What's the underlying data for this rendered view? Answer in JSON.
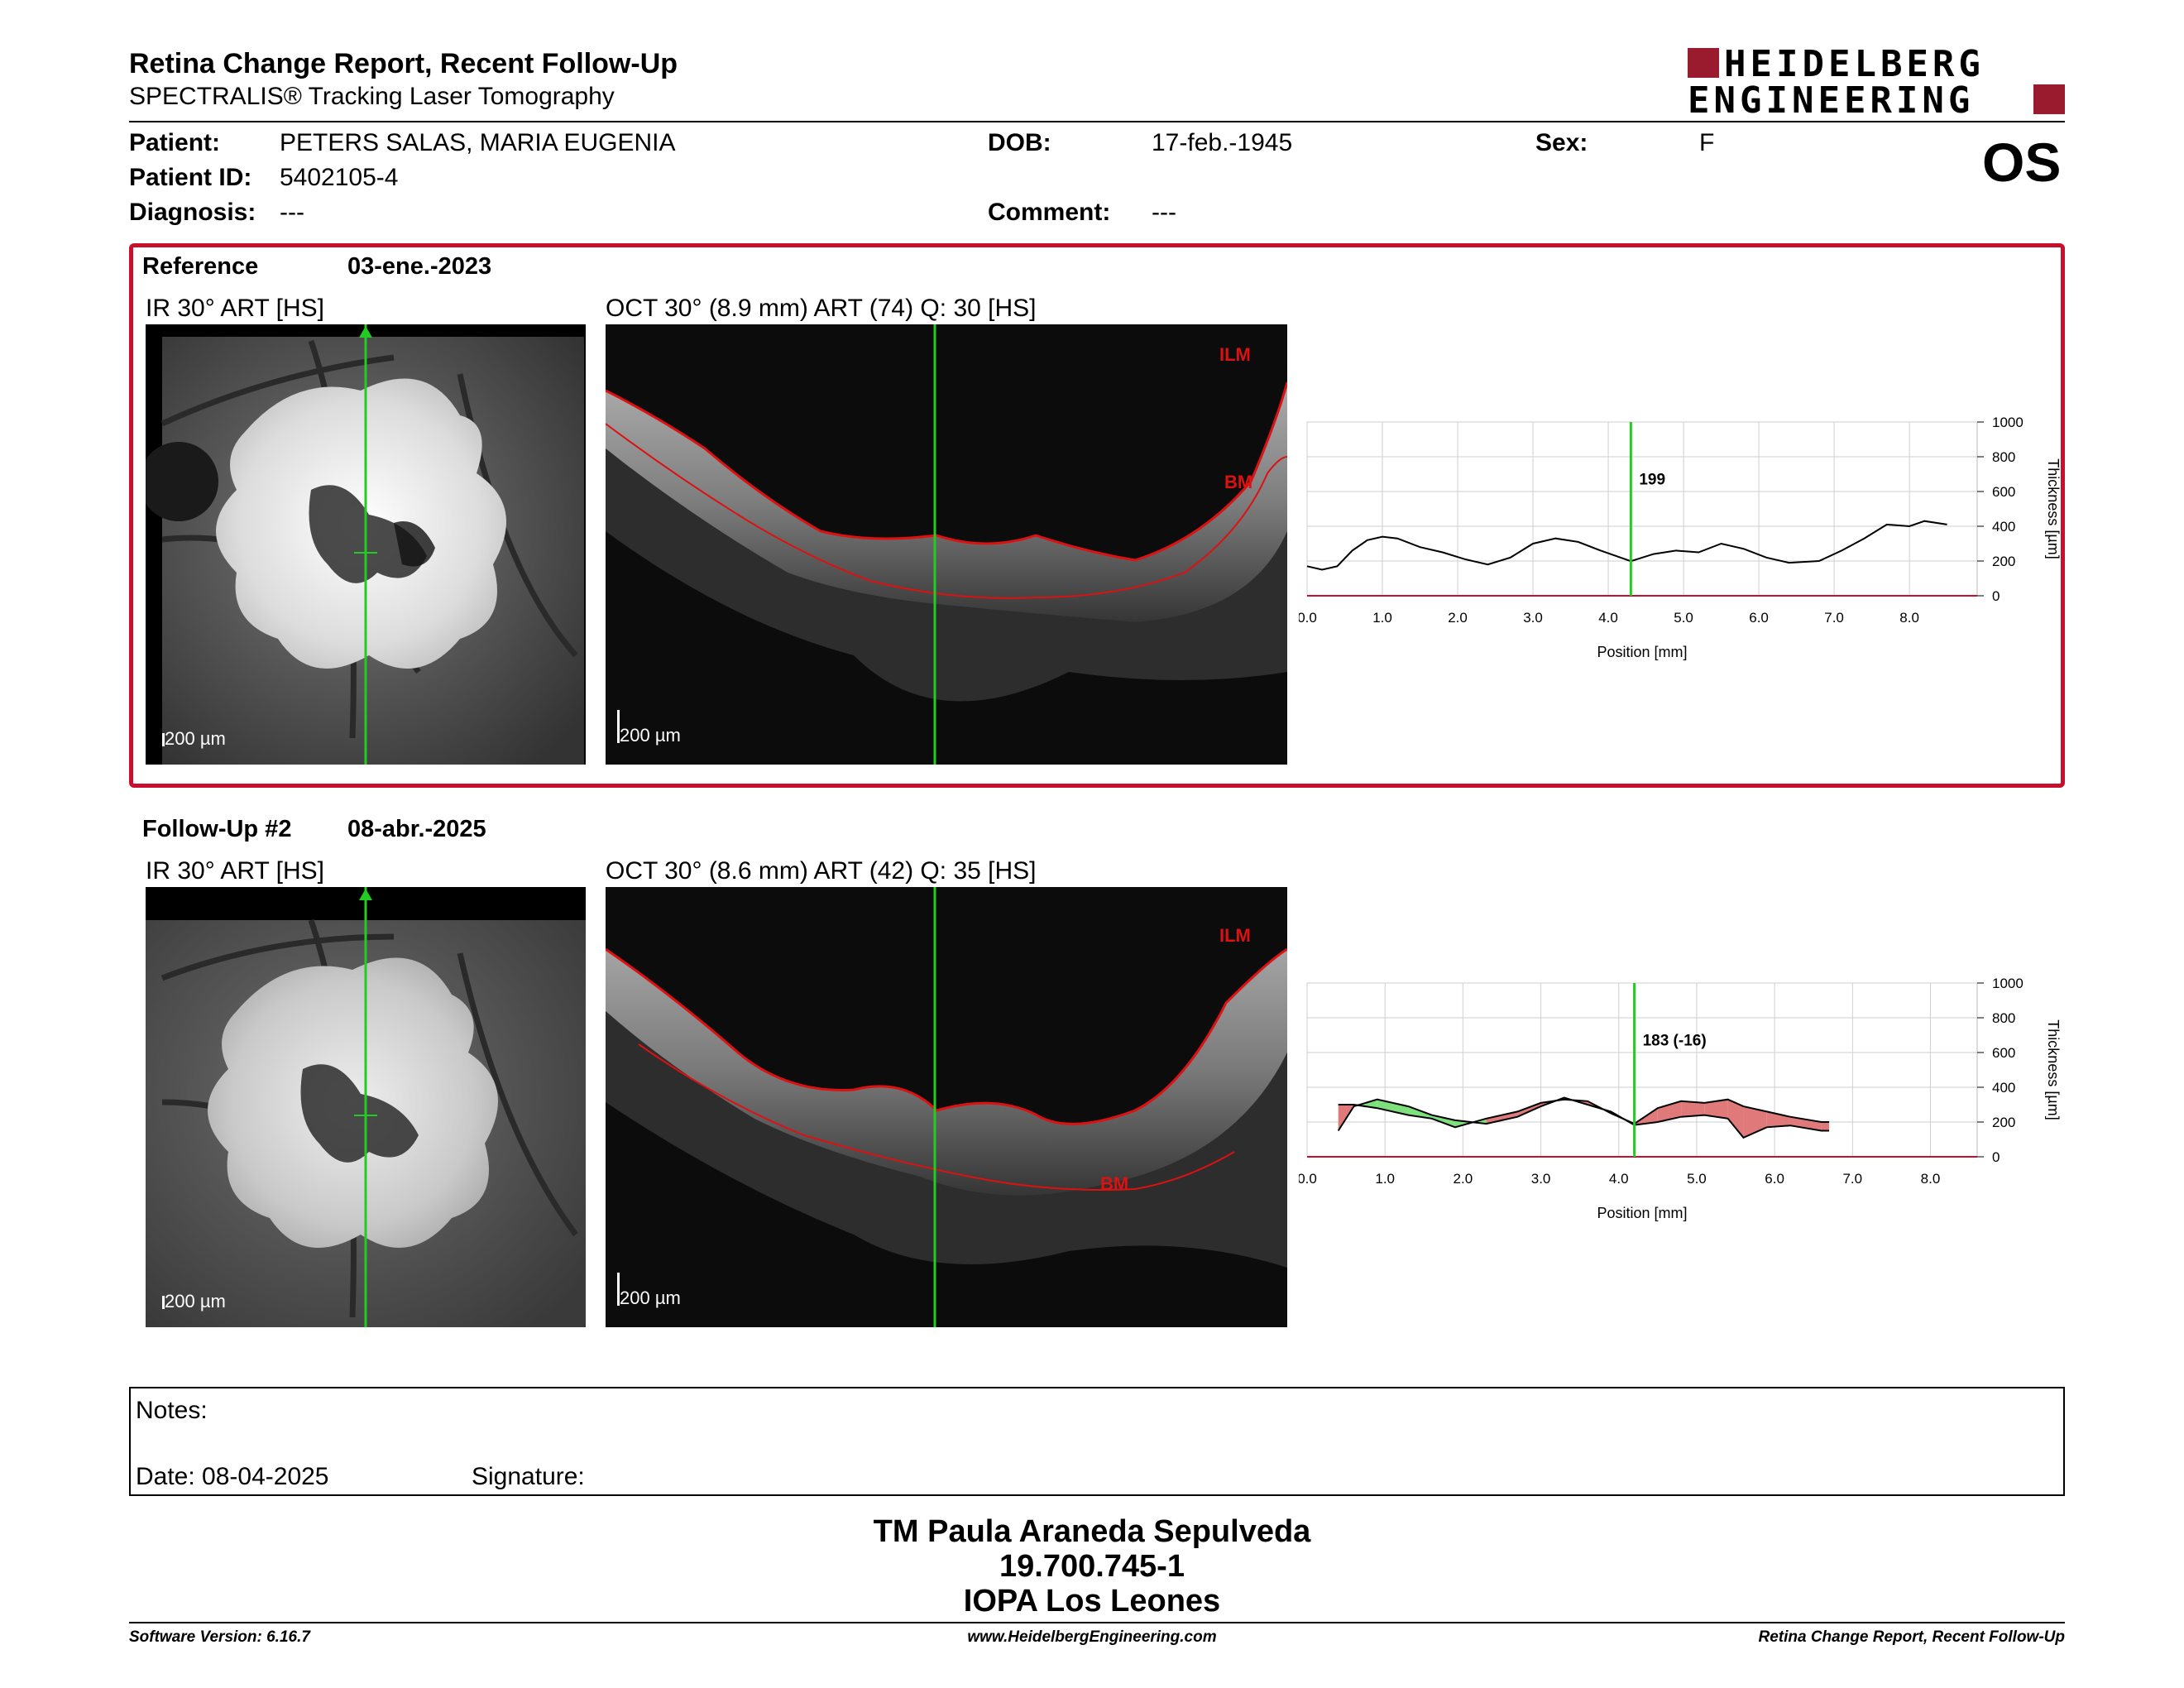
{
  "header": {
    "title": "Retina Change Report, Recent Follow-Up",
    "subtitle": "SPECTRALIS® Tracking Laser Tomography",
    "logo_line1": "HEIDELBERG",
    "logo_line2": "ENGINEERING",
    "eye": "OS"
  },
  "patient": {
    "patient_label": "Patient:",
    "patient_value": "PETERS SALAS, MARIA EUGENIA",
    "id_label": "Patient ID:",
    "id_value": "5402105-4",
    "diag_label": "Diagnosis:",
    "diag_value": "---",
    "dob_label": "DOB:",
    "dob_value": "17-feb.-1945",
    "comment_label": "Comment:",
    "comment_value": "---",
    "sex_label": "Sex:",
    "sex_value": "F"
  },
  "reference": {
    "label": "Reference",
    "date": "03-ene.-2023",
    "ir_label": "IR 30° ART [HS]",
    "oct_label": "OCT 30° (8.9 mm) ART (74) Q: 30 [HS]",
    "scale": "200 µm",
    "ilm": "ILM",
    "bm": "BM",
    "marker_value": "199"
  },
  "followup": {
    "label": "Follow-Up #2",
    "date": "08-abr.-2025",
    "ir_label": "IR 30° ART [HS]",
    "oct_label": "OCT 30° (8.6 mm) ART (42) Q: 35 [HS]",
    "scale": "200 µm",
    "ilm": "ILM",
    "bm": "BM",
    "marker_value": "183 (-16)"
  },
  "chart_data": [
    {
      "type": "line",
      "xlabel": "Position [mm]",
      "ylabel": "Thickness [µm]",
      "xlim": [
        0,
        8.9
      ],
      "ylim": [
        0,
        1000
      ],
      "xticks": [
        "0.0",
        "1.0",
        "2.0",
        "3.0",
        "4.0",
        "5.0",
        "6.0",
        "7.0",
        "8.0"
      ],
      "yticks": [
        "0",
        "200",
        "400",
        "600",
        "800",
        "1000"
      ],
      "marker_x": 4.3,
      "marker_label": "199",
      "series": [
        {
          "values": [
            [
              0,
              170
            ],
            [
              0.2,
              150
            ],
            [
              0.4,
              170
            ],
            [
              0.6,
              260
            ],
            [
              0.8,
              320
            ],
            [
              1.0,
              340
            ],
            [
              1.2,
              330
            ],
            [
              1.5,
              280
            ],
            [
              1.8,
              250
            ],
            [
              2.1,
              210
            ],
            [
              2.4,
              180
            ],
            [
              2.7,
              220
            ],
            [
              3.0,
              300
            ],
            [
              3.3,
              330
            ],
            [
              3.6,
              310
            ],
            [
              3.9,
              260
            ],
            [
              4.3,
              199
            ],
            [
              4.6,
              240
            ],
            [
              4.9,
              260
            ],
            [
              5.2,
              250
            ],
            [
              5.5,
              300
            ],
            [
              5.8,
              270
            ],
            [
              6.1,
              220
            ],
            [
              6.4,
              190
            ],
            [
              6.8,
              200
            ],
            [
              7.1,
              260
            ],
            [
              7.4,
              330
            ],
            [
              7.7,
              410
            ],
            [
              8.0,
              400
            ],
            [
              8.2,
              430
            ],
            [
              8.5,
              410
            ]
          ]
        }
      ]
    },
    {
      "type": "line",
      "xlabel": "Position [mm]",
      "ylabel": "Thickness [µm]",
      "xlim": [
        0,
        8.6
      ],
      "ylim": [
        0,
        1000
      ],
      "xticks": [
        "0.0",
        "1.0",
        "2.0",
        "3.0",
        "4.0",
        "5.0",
        "6.0",
        "7.0",
        "8.0"
      ],
      "yticks": [
        "0",
        "200",
        "400",
        "600",
        "800",
        "1000"
      ],
      "marker_x": 4.2,
      "marker_label": "183 (-16)",
      "series": [
        {
          "values": [
            [
              0.4,
              150
            ],
            [
              0.6,
              290
            ],
            [
              0.9,
              330
            ],
            [
              1.3,
              290
            ],
            [
              1.6,
              240
            ],
            [
              1.9,
              210
            ],
            [
              2.3,
              190
            ],
            [
              2.7,
              230
            ],
            [
              3.0,
              290
            ],
            [
              3.3,
              340
            ],
            [
              3.6,
              300
            ],
            [
              3.9,
              260
            ],
            [
              4.2,
              183
            ],
            [
              4.5,
              200
            ],
            [
              4.8,
              230
            ],
            [
              5.1,
              240
            ],
            [
              5.4,
              220
            ],
            [
              5.6,
              110
            ],
            [
              5.9,
              170
            ],
            [
              6.2,
              180
            ],
            [
              6.6,
              150
            ],
            [
              6.7,
              150
            ]
          ]
        },
        {
          "values": [
            [
              0.4,
              300
            ],
            [
              0.6,
              300
            ],
            [
              0.9,
              280
            ],
            [
              1.3,
              240
            ],
            [
              1.6,
              220
            ],
            [
              1.9,
              170
            ],
            [
              2.3,
              220
            ],
            [
              2.7,
              260
            ],
            [
              3.0,
              310
            ],
            [
              3.3,
              330
            ],
            [
              3.6,
              320
            ],
            [
              3.9,
              250
            ],
            [
              4.2,
              190
            ],
            [
              4.5,
              280
            ],
            [
              4.8,
              320
            ],
            [
              5.1,
              310
            ],
            [
              5.4,
              330
            ],
            [
              5.6,
              290
            ],
            [
              5.9,
              260
            ],
            [
              6.2,
              230
            ],
            [
              6.6,
              200
            ],
            [
              6.7,
              200
            ]
          ]
        }
      ],
      "colors": {
        "increase": "#7de07d",
        "decrease": "#e07a7a"
      }
    }
  ],
  "notes": {
    "notes_label": "Notes:",
    "date_label": "Date: 08-04-2025",
    "signature_label": "Signature:"
  },
  "signer": {
    "name": "TM Paula Araneda Sepulveda",
    "rut": "19.700.745-1",
    "org": "IOPA Los Leones"
  },
  "footer": {
    "left": "Software Version: 6.16.7",
    "center": "www.HeidelbergEngineering.com",
    "right": "Retina Change Report, Recent Follow-Up"
  },
  "colors": {
    "accent": "#c8102e",
    "marker": "#22cc22",
    "layer": "#dd1111"
  }
}
